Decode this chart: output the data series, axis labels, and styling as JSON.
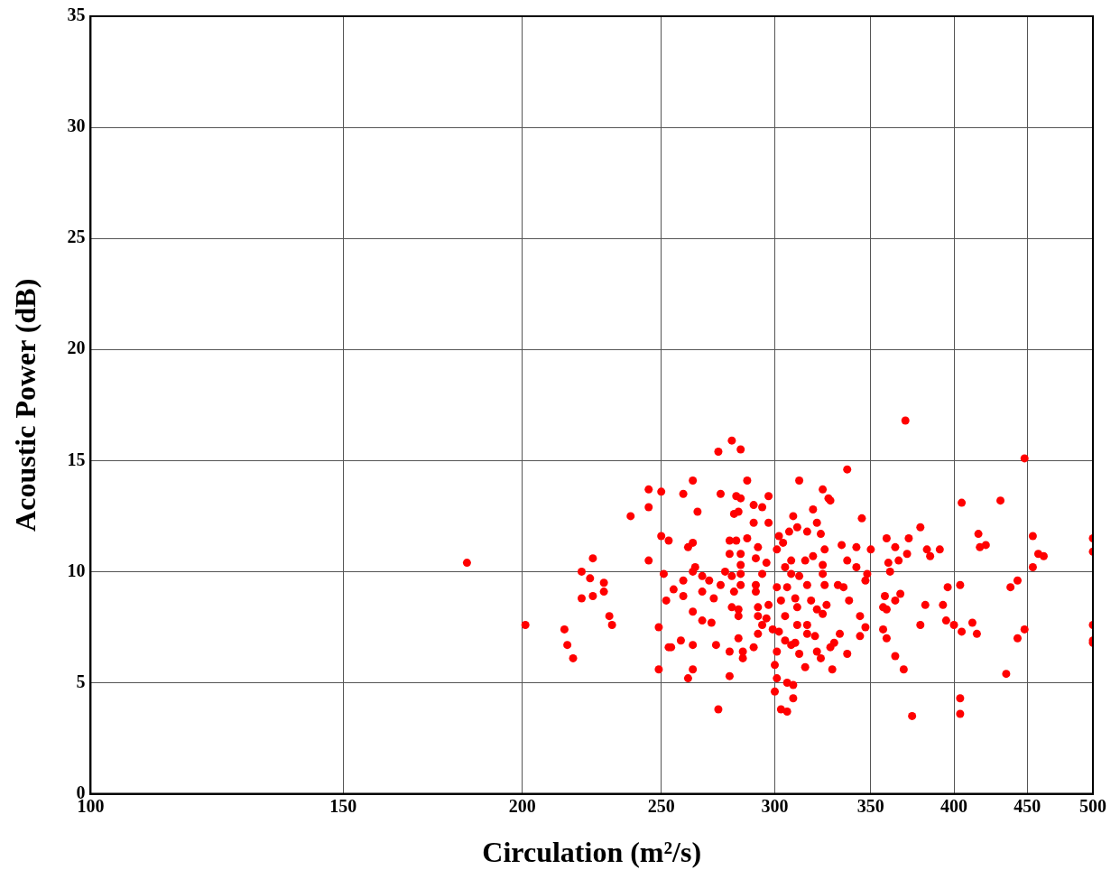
{
  "chart_data": {
    "type": "scatter",
    "xlabel": "Circulation (m²/s)",
    "ylabel": "Acoustic Power (dB)",
    "log": "x",
    "grid": true,
    "marker": "circle",
    "color": "#ff0000",
    "xlim": [
      100,
      500
    ],
    "xticks": [
      100,
      150,
      200,
      250,
      300,
      350,
      400,
      450,
      500
    ],
    "ylim": [
      0,
      35
    ],
    "yticks": [
      0,
      5,
      10,
      15,
      20,
      25,
      30,
      35
    ],
    "x": [
      183,
      201,
      214,
      215,
      217,
      220,
      220,
      223,
      224,
      224,
      228,
      228,
      230,
      231,
      238,
      245,
      245,
      245,
      249,
      249,
      250,
      250,
      251,
      252,
      253,
      253,
      280,
      274,
      284,
      337,
      263,
      287,
      312,
      259,
      275,
      282,
      284,
      297,
      324,
      327,
      328,
      265,
      281,
      283,
      290,
      294,
      319,
      345,
      290,
      297,
      309,
      321,
      311,
      307,
      316,
      323,
      302,
      263,
      261,
      279,
      282,
      287,
      292,
      304,
      301,
      325,
      334,
      342,
      350,
      279,
      284,
      291,
      284,
      296,
      308,
      315,
      319,
      337,
      324,
      264,
      342,
      263,
      277,
      284,
      294,
      305,
      308,
      312,
      324,
      348,
      267,
      270,
      280,
      259,
      255,
      275,
      284,
      291,
      301,
      306,
      316,
      325,
      332,
      335,
      347,
      259,
      267,
      272,
      281,
      291,
      303,
      310,
      318,
      326,
      338,
      280,
      283,
      292,
      297,
      311,
      321,
      263,
      283,
      292,
      305,
      324,
      344,
      267,
      271,
      296,
      294,
      311,
      316,
      347,
      292,
      299,
      302,
      316,
      320,
      333,
      344,
      258,
      254,
      263,
      273,
      283,
      290,
      305,
      308,
      310,
      330,
      279,
      285,
      301,
      312,
      321,
      328,
      337,
      285,
      323,
      300,
      315,
      329,
      263,
      261,
      279,
      301,
      306,
      309,
      300,
      309,
      274,
      303,
      306,
      370,
      448,
      405,
      431,
      379,
      359,
      364,
      372,
      383,
      391,
      385,
      371,
      366,
      360,
      361,
      416,
      417,
      421,
      454,
      458,
      462,
      454,
      500,
      500,
      443,
      438,
      396,
      404,
      358,
      367,
      364,
      382,
      393,
      357,
      359,
      379,
      395,
      400,
      412,
      405,
      415,
      448,
      443,
      357,
      359,
      364,
      369,
      435,
      500,
      500,
      500,
      404,
      404,
      374
    ],
    "values": [
      10.4,
      7.6,
      7.4,
      6.7,
      6.1,
      8.8,
      10.0,
      9.7,
      10.6,
      8.9,
      9.5,
      9.1,
      8.0,
      7.6,
      12.5,
      13.7,
      12.9,
      10.5,
      7.5,
      5.6,
      11.6,
      13.6,
      9.9,
      8.7,
      11.4,
      6.6,
      15.9,
      15.4,
      15.5,
      14.6,
      14.1,
      14.1,
      14.1,
      13.5,
      13.5,
      13.4,
      13.3,
      13.4,
      13.7,
      13.3,
      13.2,
      12.7,
      12.6,
      12.7,
      13.0,
      12.9,
      12.8,
      12.4,
      12.2,
      12.2,
      12.5,
      12.2,
      12.0,
      11.8,
      11.8,
      11.7,
      11.6,
      11.3,
      11.1,
      11.4,
      11.4,
      11.5,
      11.1,
      11.3,
      11.0,
      11.0,
      11.2,
      11.1,
      11.0,
      10.8,
      10.8,
      10.6,
      10.3,
      10.4,
      10.5,
      10.5,
      10.7,
      10.5,
      10.3,
      10.2,
      10.2,
      10.0,
      10.0,
      9.9,
      9.9,
      10.2,
      9.9,
      9.8,
      9.9,
      9.9,
      9.8,
      9.6,
      9.8,
      9.6,
      9.2,
      9.4,
      9.4,
      9.4,
      9.3,
      9.3,
      9.4,
      9.4,
      9.4,
      9.3,
      9.6,
      8.9,
      9.1,
      8.8,
      9.1,
      9.1,
      8.7,
      8.8,
      8.7,
      8.5,
      8.7,
      8.4,
      8.3,
      8.4,
      8.5,
      8.4,
      8.3,
      8.2,
      8.0,
      8.0,
      8.0,
      8.1,
      8.0,
      7.8,
      7.7,
      7.9,
      7.6,
      7.6,
      7.6,
      7.5,
      7.2,
      7.4,
      7.3,
      7.2,
      7.1,
      7.2,
      7.1,
      6.9,
      6.6,
      6.7,
      6.7,
      7.0,
      6.6,
      6.9,
      6.7,
      6.8,
      6.8,
      6.4,
      6.4,
      6.4,
      6.3,
      6.4,
      6.6,
      6.3,
      6.1,
      6.1,
      5.8,
      5.7,
      5.6,
      5.6,
      5.2,
      5.3,
      5.2,
      5.0,
      4.9,
      4.6,
      4.3,
      3.8,
      3.8,
      3.7,
      16.8,
      15.1,
      13.1,
      13.2,
      12.0,
      11.5,
      11.1,
      11.5,
      11.0,
      11.0,
      10.7,
      10.8,
      10.5,
      10.4,
      10.0,
      11.7,
      11.1,
      11.2,
      11.6,
      10.8,
      10.7,
      10.2,
      11.5,
      10.9,
      9.6,
      9.3,
      9.3,
      9.4,
      8.9,
      9.0,
      8.7,
      8.5,
      8.5,
      8.4,
      8.3,
      7.6,
      7.8,
      7.6,
      7.7,
      7.3,
      7.2,
      7.4,
      7.0,
      7.4,
      7.0,
      6.2,
      5.6,
      5.4,
      7.6,
      6.9,
      6.8,
      4.3,
      3.6,
      3.5
    ]
  }
}
